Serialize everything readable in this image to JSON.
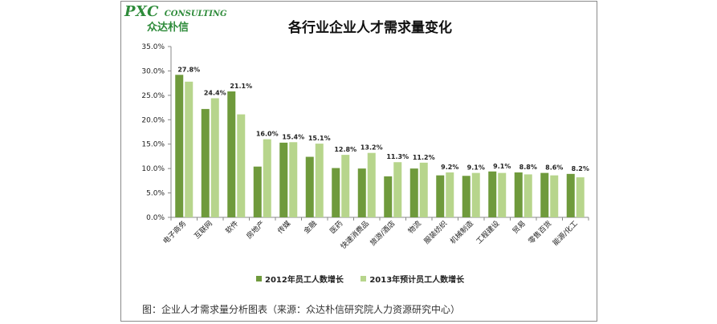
{
  "logo": {
    "name": "PXC",
    "subtitle": "CONSULTING",
    "chinese": "众达朴信"
  },
  "colors": {
    "dark": "#6f9a3c",
    "light": "#b7d58c",
    "logo": "#2e8b3a"
  },
  "chart_data": {
    "type": "bar",
    "title": "各行业企业人才需求量变化",
    "categories": [
      "电子商务",
      "互联网",
      "软件",
      "房地产",
      "传媒",
      "金融",
      "医药",
      "快速消费品",
      "旅游/酒店",
      "物流",
      "服装纺织",
      "机械制造",
      "工程建设",
      "贸易",
      "零售百货",
      "能源/化工"
    ],
    "series": [
      {
        "name": "2012年员工人数增长",
        "values": [
          29.2,
          22.2,
          25.8,
          10.4,
          15.3,
          12.4,
          10.1,
          10.0,
          8.4,
          10.0,
          8.6,
          8.5,
          9.4,
          9.2,
          9.1,
          8.9
        ]
      },
      {
        "name": "2013年预计员工人数增长",
        "values": [
          27.8,
          24.4,
          21.1,
          16.0,
          15.4,
          15.1,
          12.8,
          13.2,
          11.3,
          11.2,
          9.2,
          9.1,
          9.1,
          8.8,
          8.6,
          8.2
        ],
        "labels": [
          "27.8%",
          "24.4%",
          "21.1%",
          "16.0%",
          "15.4%",
          "15.1%",
          "12.8%",
          "13.2%",
          "11.3%",
          "11.2%",
          "9.2%",
          "9.1%",
          "9.1%",
          "8.8%",
          "8.6%",
          "8.2%"
        ]
      }
    ],
    "y_ticks": [
      "0.0%",
      "5.0%",
      "10.0%",
      "15.0%",
      "20.0%",
      "25.0%",
      "30.0%",
      "35.0%"
    ],
    "ylim": [
      0,
      35
    ],
    "grid": false,
    "legend_position": "bottom"
  },
  "caption": "图：企业人才需求量分析图表（来源：众达朴信研究院人力资源研究中心）"
}
